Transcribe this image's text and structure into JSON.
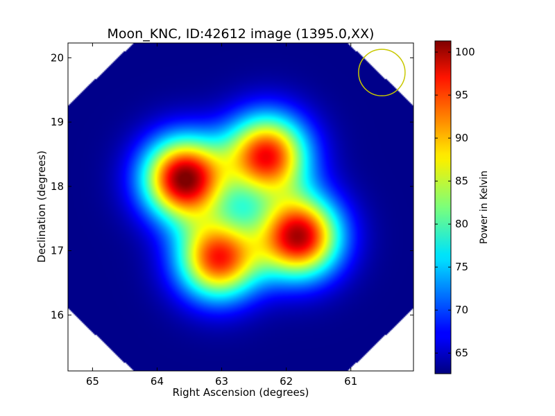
{
  "chart_data": {
    "type": "heatmap",
    "title": "Moon_KNC, ID:42612 image (1395.0,XX)",
    "xlabel": "Right Ascension (degrees)",
    "ylabel": "Declination (degrees)",
    "colorbar_label": "Power in Kelvin",
    "colormap": "jet",
    "x_axis_inverted": true,
    "xlim": [
      65.38,
      60.03
    ],
    "ylim": [
      15.13,
      20.23
    ],
    "x_ticks": [
      "65",
      "64",
      "63",
      "62",
      "61"
    ],
    "x_tick_values": [
      65,
      64,
      63,
      62,
      61
    ],
    "y_ticks": [
      "16",
      "17",
      "18",
      "19",
      "20"
    ],
    "y_tick_values": [
      16,
      17,
      18,
      19,
      20
    ],
    "colorbar_ticks": [
      "65",
      "70",
      "75",
      "80",
      "85",
      "90",
      "95",
      "100"
    ],
    "colorbar_tick_values": [
      65,
      70,
      75,
      80,
      85,
      90,
      95,
      100
    ],
    "color_range": [
      62.6,
      101.3
    ],
    "background_level": 63.0,
    "sources": [
      {
        "ra": 63.58,
        "dec": 18.12,
        "peak": 101.0
      },
      {
        "ra": 62.3,
        "dec": 18.48,
        "peak": 96.0
      },
      {
        "ra": 61.8,
        "dec": 17.22,
        "peak": 99.0
      },
      {
        "ra": 63.05,
        "dec": 16.88,
        "peak": 95.0
      }
    ],
    "beam_marker": {
      "ra": 60.52,
      "dec": 19.77,
      "radius_deg": 0.36,
      "color": "#c8c800"
    },
    "grid": false,
    "legend": "none"
  }
}
